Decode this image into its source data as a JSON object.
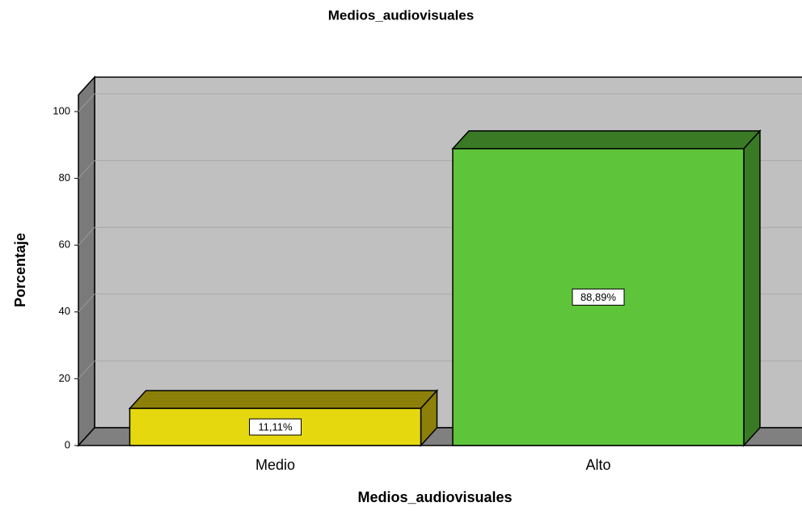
{
  "chart_data": {
    "type": "bar3d",
    "title": "Medios_audiovisuales",
    "x_label": "Medios_audiovisuales",
    "y_label": "Porcentaje",
    "categories": [
      "Medio",
      "Alto"
    ],
    "values": [
      11.11,
      88.89
    ],
    "value_labels": [
      "11,11%",
      "88,89%"
    ],
    "colors": [
      "#e6d80f",
      "#5ec43a"
    ],
    "shade_colors": [
      "#8c8009",
      "#3a7a25"
    ],
    "ylim": [
      0,
      105
    ],
    "yticks": [
      0,
      20,
      40,
      60,
      80,
      100
    ],
    "grid": true
  }
}
